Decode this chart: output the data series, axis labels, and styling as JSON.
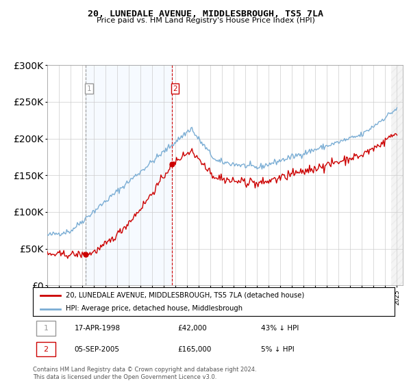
{
  "title": "20, LUNEDALE AVENUE, MIDDLESBROUGH, TS5 7LA",
  "subtitle": "Price paid vs. HM Land Registry's House Price Index (HPI)",
  "hpi_label": "HPI: Average price, detached house, Middlesbrough",
  "price_label": "20, LUNEDALE AVENUE, MIDDLESBROUGH, TS5 7LA (detached house)",
  "sale1_date": "17-APR-1998",
  "sale1_price": 42000,
  "sale1_pct": "43% ↓ HPI",
  "sale2_date": "05-SEP-2005",
  "sale2_price": 165000,
  "sale2_pct": "5% ↓ HPI",
  "footer": "Contains HM Land Registry data © Crown copyright and database right 2024.\nThis data is licensed under the Open Government Licence v3.0.",
  "price_color": "#cc0000",
  "hpi_color": "#7aadd4",
  "vline1_color": "#999999",
  "vline2_color": "#cc0000",
  "shade_color": "#ddeeff",
  "ylim": [
    0,
    300000
  ],
  "yticks": [
    0,
    50000,
    100000,
    150000,
    200000,
    250000,
    300000
  ],
  "sale1_year": 1998.29,
  "sale2_year": 2005.67,
  "xmin": 1995,
  "xmax": 2025.5
}
